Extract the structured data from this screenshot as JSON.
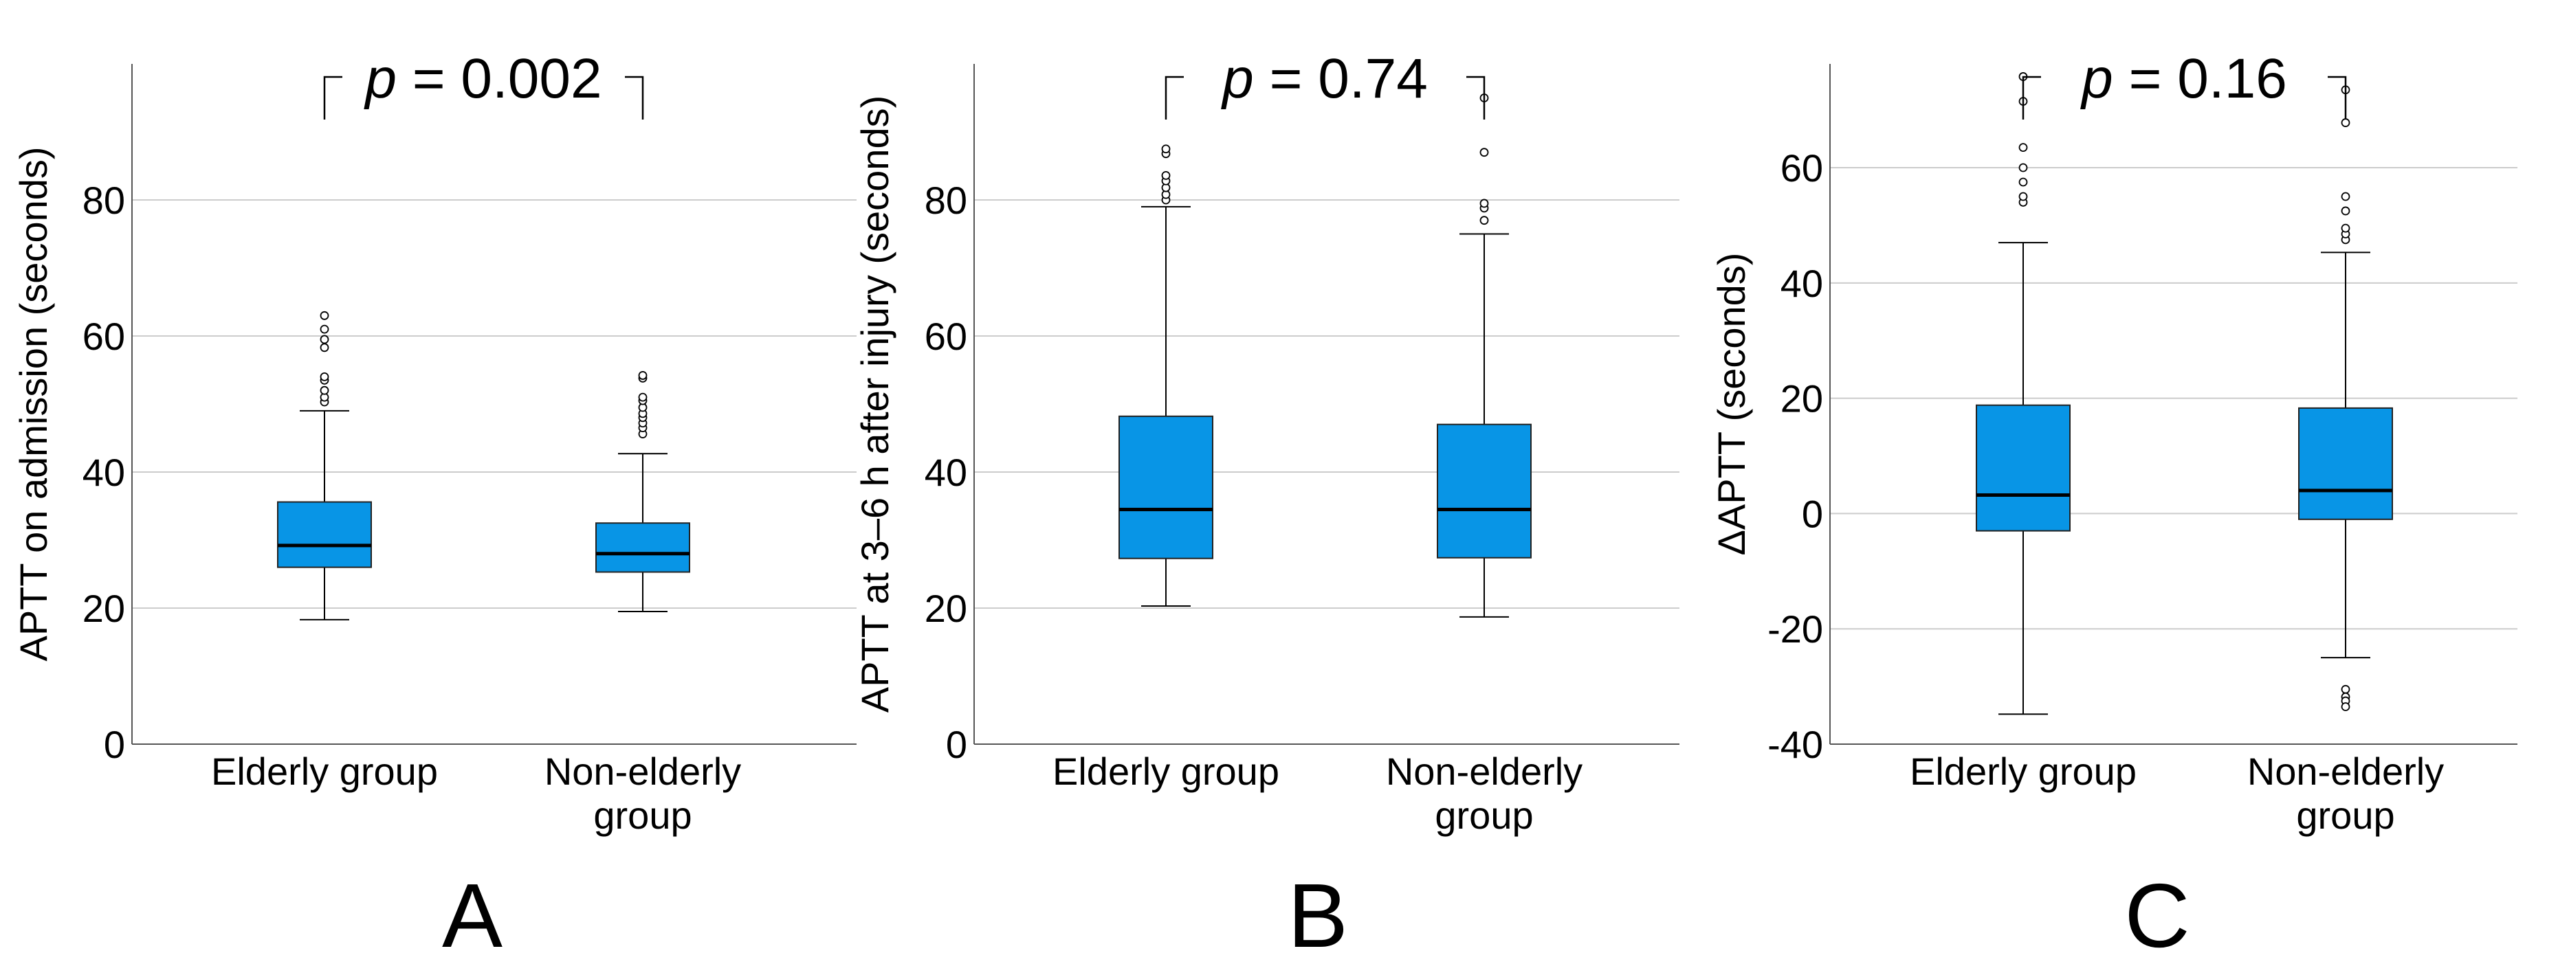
{
  "colors": {
    "box_fill": "#0895e6",
    "grid": "#cccccc",
    "axis": "#555555",
    "text": "#000000"
  },
  "chart_data": [
    {
      "type": "box",
      "panel_label": "A",
      "ylabel": "APTT on admission (seconds)",
      "ylim": [
        0,
        100
      ],
      "yticks": [
        0,
        20,
        40,
        60,
        80
      ],
      "ytick_labels": [
        "0",
        "20",
        "40",
        "60",
        "80"
      ],
      "categories": [
        "Elderly group",
        "Non-elderly\ngroup"
      ],
      "annotation": {
        "p_label": "p",
        "p_text": " = 0.002"
      },
      "boxes": [
        {
          "whisker_low": 18.3,
          "q1": 26.0,
          "median": 29.2,
          "q3": 35.6,
          "whisker_high": 49.0,
          "outliers": [
            50.3,
            51.0,
            52.0,
            53.5,
            54.0,
            58.3,
            59.5,
            61.0,
            63.0
          ]
        },
        {
          "whisker_low": 19.5,
          "q1": 25.3,
          "median": 28.0,
          "q3": 32.5,
          "whisker_high": 42.7,
          "outliers": [
            45.6,
            46.5,
            47.2,
            48.0,
            48.6,
            49.5,
            50.5,
            51.0,
            53.8,
            54.2
          ]
        }
      ]
    },
    {
      "type": "box",
      "panel_label": "B",
      "ylabel": "APTT at 3–6 h after injury (seconds)",
      "ylim": [
        0,
        100
      ],
      "yticks": [
        0,
        20,
        40,
        60,
        80
      ],
      "ytick_labels": [
        "0",
        "20",
        "40",
        "60",
        "80"
      ],
      "categories": [
        "Elderly group",
        "Non-elderly\ngroup"
      ],
      "annotation": {
        "p_label": "p",
        "p_text": " = 0.74"
      },
      "boxes": [
        {
          "whisker_low": 20.3,
          "q1": 27.3,
          "median": 34.5,
          "q3": 48.2,
          "whisker_high": 79.0,
          "outliers": [
            80.0,
            80.8,
            81.8,
            82.8,
            83.6,
            86.8,
            87.5
          ]
        },
        {
          "whisker_low": 18.7,
          "q1": 27.4,
          "median": 34.5,
          "q3": 47.0,
          "whisker_high": 75.0,
          "outliers": [
            77.0,
            78.8,
            79.5,
            87.0,
            95.0
          ]
        }
      ]
    },
    {
      "type": "box",
      "panel_label": "C",
      "ylabel": "ΔAPTT (seconds)",
      "ylim": [
        -40,
        78
      ],
      "yticks": [
        -40,
        -20,
        0,
        20,
        40,
        60
      ],
      "ytick_labels": [
        "-40",
        "-20",
        "0",
        "20",
        "40",
        "60"
      ],
      "categories": [
        "Elderly group",
        "Non-elderly\ngroup"
      ],
      "annotation": {
        "p_label": "p",
        "p_text": " = 0.16"
      },
      "boxes": [
        {
          "whisker_low": -34.8,
          "q1": -3.0,
          "median": 3.2,
          "q3": 18.8,
          "whisker_high": 47.0,
          "outliers": [
            54.0,
            55.0,
            57.5,
            60.0,
            63.5,
            71.5,
            75.8
          ]
        },
        {
          "whisker_low": -25.0,
          "q1": -1.0,
          "median": 4.0,
          "q3": 18.3,
          "whisker_high": 45.3,
          "outliers": [
            47.5,
            48.5,
            49.5,
            52.5,
            55.0,
            67.8,
            73.5,
            -30.5,
            -31.8,
            -32.5,
            -33.5
          ]
        }
      ]
    }
  ]
}
